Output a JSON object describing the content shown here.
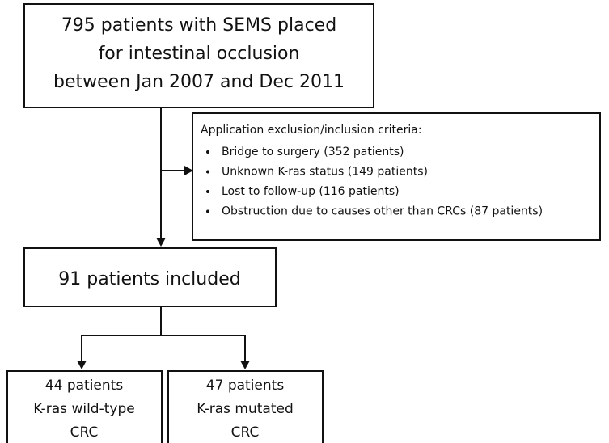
{
  "nodes": [
    {
      "lines": [
        "795 patients with SEMS placed",
        "for intestinal occlusion",
        "between Jan 2007 and Dec 2011"
      ]
    },
    {
      "lines": [
        "91 patients included"
      ]
    },
    {
      "lines": [
        "44 patients",
        "K-ras wild-type",
        "CRC"
      ]
    },
    {
      "lines": [
        "47 patients",
        "K-ras mutated",
        "CRC"
      ]
    }
  ],
  "criteria": {
    "title": "Application exclusion/inclusion criteria:",
    "items": [
      "Bridge to surgery (352 patients)",
      "Unknown K-ras status (149 patients)",
      "Lost to follow-up (116 patients)",
      "Obstruction due to causes other than CRCs (87 patients)"
    ]
  }
}
